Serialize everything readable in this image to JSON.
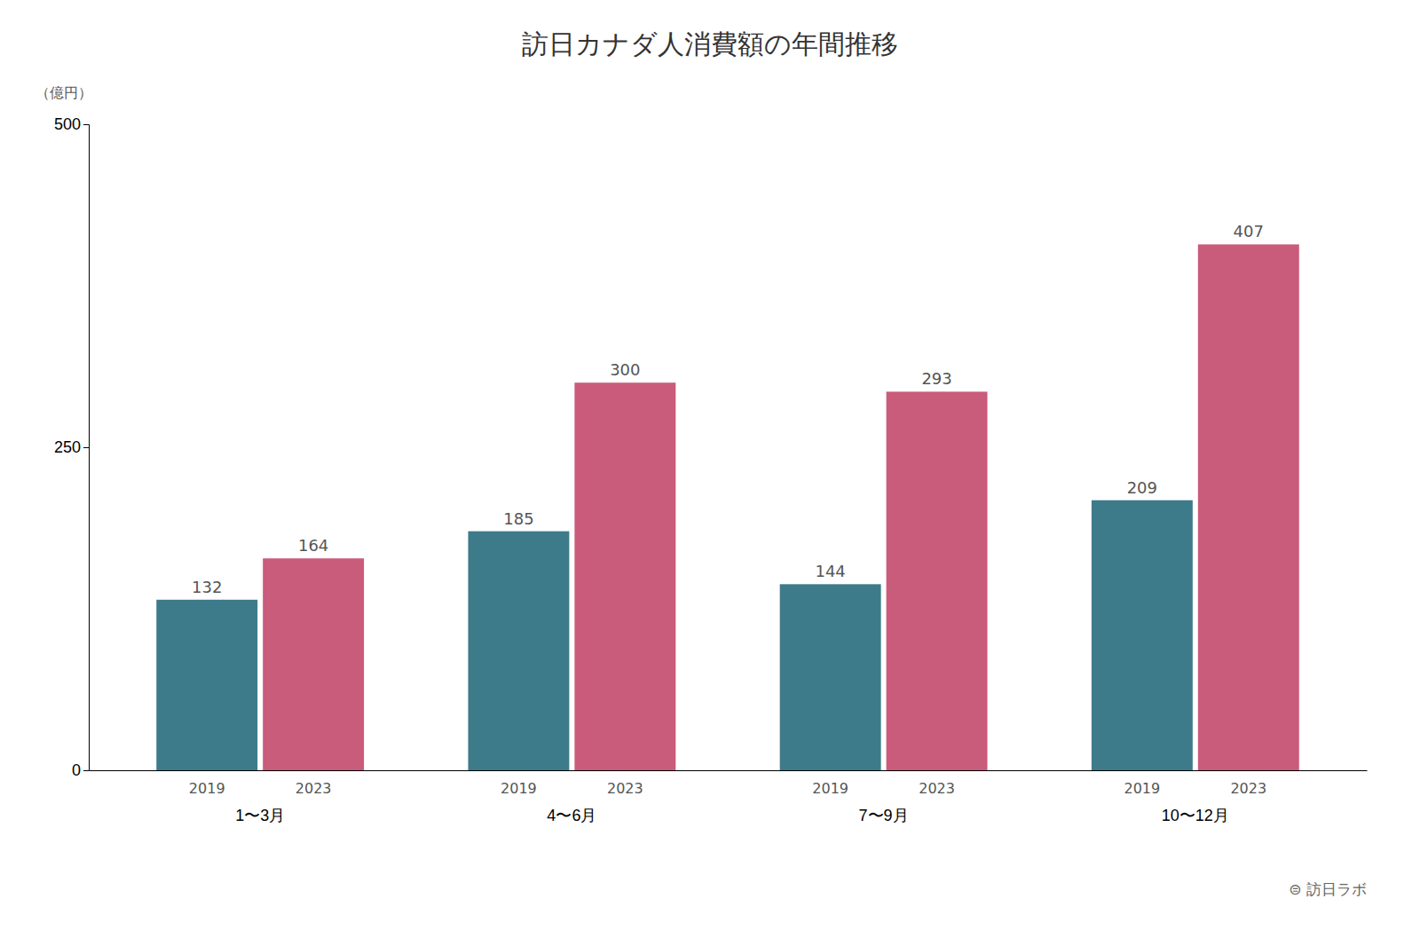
{
  "chart_data": {
    "type": "bar",
    "title": "訪日カナダ人消費額の年間推移",
    "y_label": "（億円）",
    "annotations": [
      "⊜ 訪日ラボ"
    ],
    "categories": [
      "1〜3月",
      "4〜6月",
      "7〜9月",
      "10〜12月"
    ],
    "series": [
      {
        "name": "2019",
        "color": "#3d7a8a",
        "values": [
          132,
          185,
          144,
          209
        ]
      },
      {
        "name": "2023",
        "color": "#c95b7b",
        "values": [
          164,
          300,
          293,
          407
        ]
      }
    ],
    "ylim": [
      0,
      500
    ],
    "yticks": [
      0,
      250,
      500
    ],
    "grid": false,
    "data_labels": true
  }
}
